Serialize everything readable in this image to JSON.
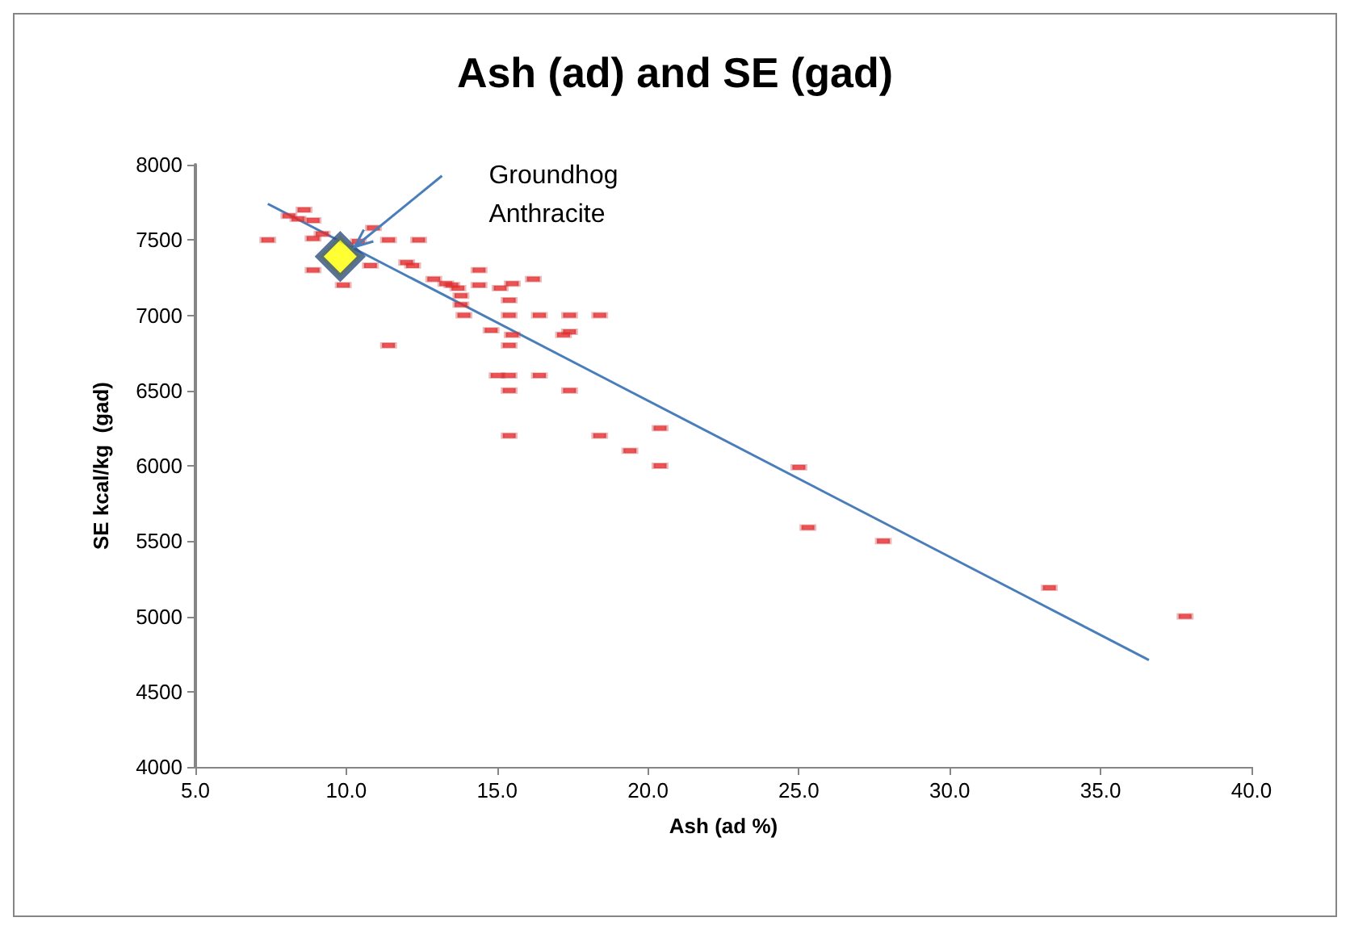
{
  "chart_data": {
    "type": "scatter",
    "title": "Ash (ad) and SE (gad)",
    "xlabel": "Ash (ad %)",
    "ylabel": "SE kcal/kg  (gad)",
    "xlim": [
      5,
      40
    ],
    "xticks": [
      {
        "value": 5,
        "label": "5.0"
      },
      {
        "value": 10,
        "label": "10.0"
      },
      {
        "value": 15,
        "label": "15.0"
      },
      {
        "value": 20,
        "label": "20.0"
      },
      {
        "value": 25,
        "label": "25.0"
      },
      {
        "value": 30,
        "label": "30.0"
      },
      {
        "value": 35,
        "label": "35.0"
      },
      {
        "value": 40,
        "label": "40.0"
      }
    ],
    "ylim": [
      4000,
      8000
    ],
    "yticks": [
      4000,
      4500,
      5000,
      5500,
      6000,
      6500,
      7000,
      7500,
      8000
    ],
    "grid": false,
    "annotations": [
      "Groundhog\nAnthracite"
    ],
    "series": [
      {
        "color": "#e8282a",
        "marker": "square",
        "x": [
          7.4,
          8.6,
          8.1,
          8.4,
          8.9,
          9.2,
          8.9,
          8.9,
          9.9,
          10.4,
          10.9,
          11.4,
          12.4,
          10.8,
          11.4,
          12.0,
          12.2,
          12.9,
          13.3,
          13.5,
          13.7,
          13.8,
          13.8,
          13.9,
          14.4,
          14.4,
          15.1,
          15.5,
          16.2,
          15.4,
          15.4,
          16.4,
          17.4,
          18.4,
          14.8,
          15.5,
          17.4,
          17.2,
          15.4,
          15.0,
          15.4,
          16.4,
          15.4,
          17.4,
          15.4,
          18.4,
          19.4,
          20.4,
          20.4,
          25.0,
          25.3,
          27.8,
          33.3,
          37.8
        ],
        "values": [
          7500,
          7700,
          7660,
          7640,
          7630,
          7540,
          7510,
          7300,
          7200,
          7490,
          7580,
          7500,
          7500,
          7330,
          6800,
          7350,
          7330,
          7240,
          7210,
          7200,
          7180,
          7130,
          7070,
          7000,
          7300,
          7200,
          7180,
          7210,
          7240,
          7100,
          7000,
          7000,
          7000,
          7000,
          6900,
          6870,
          6890,
          6870,
          6800,
          6600,
          6600,
          6600,
          6500,
          6500,
          6200,
          6200,
          6100,
          6250,
          6000,
          5990,
          5590,
          5500,
          5190,
          5000
        ]
      },
      {
        "type": "scatter",
        "color": "#ffff00",
        "marker": "diamond",
        "x": [
          9.8
        ],
        "values": [
          7390
        ]
      },
      {
        "type": "line",
        "color": "#4a7ebb",
        "marker": "none",
        "line_style": "solid",
        "x": [
          7.4,
          36.6
        ],
        "values": [
          7740,
          4710
        ]
      }
    ]
  }
}
